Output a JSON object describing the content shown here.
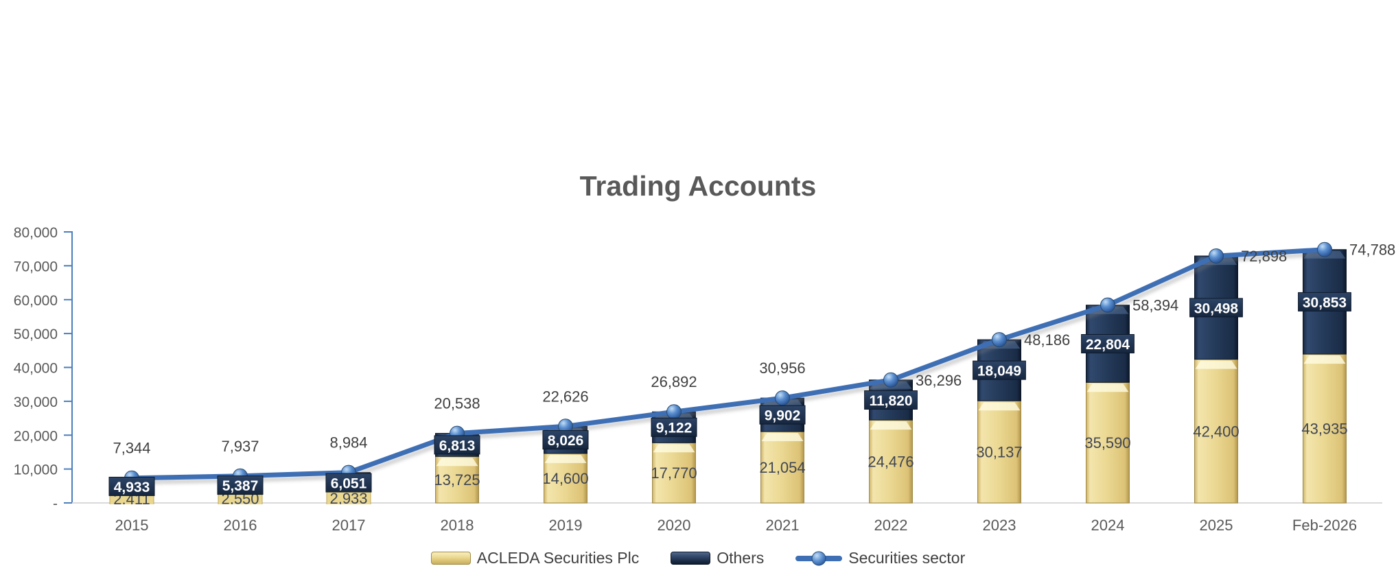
{
  "chart_data": {
    "type": "bar",
    "subtype": "stacked-column-with-line",
    "title": "Trading Accounts",
    "categories": [
      "2015",
      "2016",
      "2017",
      "2018",
      "2019",
      "2020",
      "2021",
      "2022",
      "2023",
      "2024",
      "2025",
      "Feb-2026"
    ],
    "series": [
      {
        "name": "ACLEDA Securities Plc",
        "type": "bar-stacked",
        "values": [
          2411,
          2550,
          2933,
          13725,
          14600,
          17770,
          21054,
          24476,
          30137,
          35590,
          42400,
          43935
        ]
      },
      {
        "name": "Others",
        "type": "bar-stacked",
        "values": [
          4933,
          5387,
          6051,
          6813,
          8026,
          9122,
          9902,
          11820,
          18049,
          22804,
          30498,
          30853
        ]
      },
      {
        "name": "Securities sector",
        "type": "line",
        "values": [
          7344,
          7937,
          8984,
          20538,
          22626,
          26892,
          30956,
          36296,
          48186,
          58394,
          72898,
          74788
        ]
      }
    ],
    "y_axis": {
      "min": 0,
      "max": 80000,
      "step": 10000,
      "tick_labels": [
        "-",
        "10,000",
        "20,000",
        "30,000",
        "40,000",
        "50,000",
        "60,000",
        "70,000",
        "80,000"
      ]
    },
    "xlabel": "",
    "ylabel": "",
    "grid": "off",
    "legend_position": "bottom",
    "data_labels": "on"
  },
  "colors": {
    "acleda_bar": "#EAD791",
    "acleda_bar_edge": "#A08A47",
    "others_bar": "#243A59",
    "others_bar_edge": "#0B1626",
    "line": "#3E6FB5",
    "marker": "#4176BB",
    "marker_edge": "#27496F",
    "axis": "#4A7EBB",
    "baseline": "#D9D9D9",
    "tick_text": "#595959",
    "title_text": "#595959",
    "dark_label_text": "#404040",
    "others_label_text": "#FFFFFF"
  }
}
